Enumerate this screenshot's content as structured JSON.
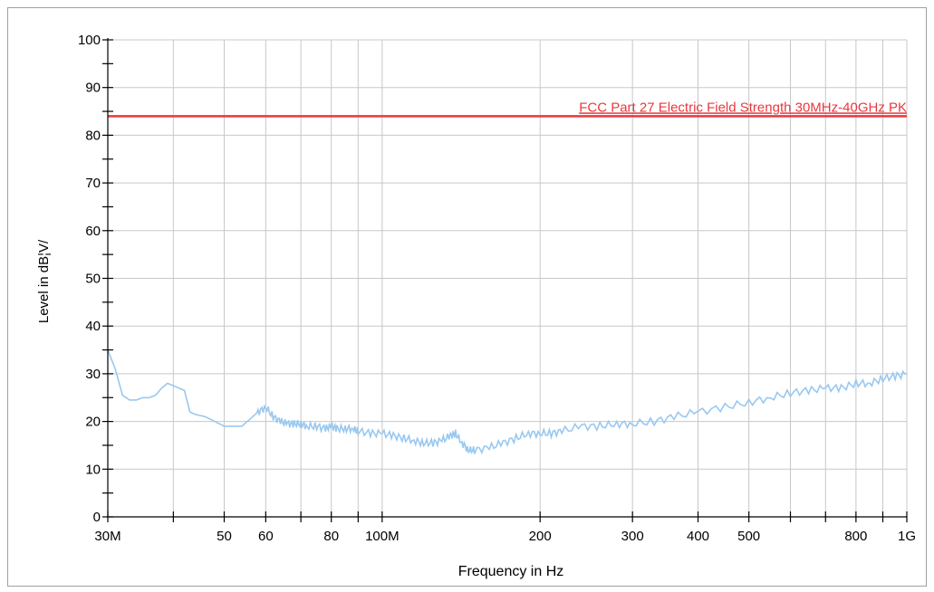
{
  "chart_data": {
    "type": "line",
    "xscale": "log",
    "xlim": [
      30,
      1000
    ],
    "ylim": [
      0,
      100
    ],
    "xlabel": "Frequency in Hz",
    "ylabel": "Level in dB¦V/",
    "grid": true,
    "x_ticks": [
      {
        "value": 30,
        "label": "30M"
      },
      {
        "value": 50,
        "label": "50"
      },
      {
        "value": 60,
        "label": "60"
      },
      {
        "value": 80,
        "label": "80"
      },
      {
        "value": 100,
        "label": "100M"
      },
      {
        "value": 200,
        "label": "200"
      },
      {
        "value": 300,
        "label": "300"
      },
      {
        "value": 400,
        "label": "400"
      },
      {
        "value": 500,
        "label": "500"
      },
      {
        "value": 800,
        "label": "800"
      },
      {
        "value": 1000,
        "label": "1G"
      }
    ],
    "x_grid_values": [
      30,
      40,
      50,
      60,
      70,
      80,
      90,
      100,
      200,
      300,
      400,
      500,
      600,
      700,
      800,
      900,
      1000
    ],
    "y_ticks": [
      0,
      10,
      20,
      30,
      40,
      50,
      60,
      70,
      80,
      90,
      100
    ],
    "limit_line": {
      "name": "FCC Part 27 Electric Field Strength 30MHz-40GHz PK",
      "value": 84,
      "color": "#e8383d"
    },
    "series": [
      {
        "color": "#99c8f0",
        "x": [
          30,
          31,
          32,
          33,
          34,
          35,
          36,
          37,
          38,
          39,
          40,
          41,
          42,
          43,
          44,
          46,
          48,
          50,
          52,
          54,
          56,
          58,
          60,
          62,
          64,
          66,
          68,
          70,
          72,
          75,
          78,
          80,
          82,
          85,
          88,
          90,
          95,
          100,
          105,
          110,
          115,
          120,
          125,
          130,
          135,
          138,
          142,
          146,
          150,
          160,
          170,
          180,
          190,
          200,
          210,
          220,
          240,
          260,
          280,
          300,
          330,
          360,
          400,
          450,
          500,
          550,
          600,
          650,
          700,
          750,
          800,
          850,
          900,
          950,
          1000
        ],
        "y": [
          35,
          31,
          25.5,
          24.5,
          24.5,
          25,
          25,
          25.5,
          27,
          28,
          27.5,
          27,
          26.5,
          22,
          21.5,
          21,
          20,
          19,
          19,
          19,
          20.5,
          22,
          23,
          21,
          20,
          19.5,
          19.5,
          19.5,
          19,
          19,
          18.5,
          19,
          18.5,
          18.5,
          18.5,
          18,
          17.5,
          17.5,
          17,
          16.5,
          16,
          15.5,
          15.5,
          16,
          17,
          17.5,
          15.5,
          14,
          14,
          14.5,
          15.5,
          16.5,
          17.5,
          17.5,
          17.5,
          18,
          19,
          19,
          19.5,
          19.5,
          20,
          21,
          22,
          23,
          24,
          25,
          26,
          26.5,
          27,
          27,
          28,
          28,
          29,
          29.5,
          30
        ]
      }
    ]
  }
}
